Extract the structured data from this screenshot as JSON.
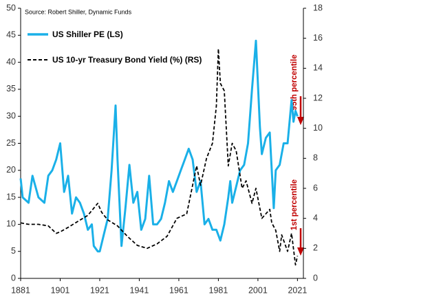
{
  "chart_data": {
    "type": "line",
    "source": "Source: Robert Shiller, Dynamic Funds",
    "xlim": [
      1881,
      2024
    ],
    "xticks": [
      1881,
      1901,
      1921,
      1941,
      1961,
      1981,
      2001,
      2021
    ],
    "ylim": [
      0,
      50
    ],
    "yticks": [
      0,
      5,
      10,
      15,
      20,
      25,
      30,
      35,
      40,
      45,
      50
    ],
    "y2lim": [
      0,
      18
    ],
    "y2ticks": [
      0,
      2,
      4,
      6,
      8,
      10,
      12,
      14,
      16,
      18
    ],
    "grid": false,
    "series": [
      {
        "name": "US Shiller PE (LS)",
        "color": "#1ab0e8",
        "dash": false,
        "x": [
          1881,
          1882,
          1885,
          1887,
          1890,
          1893,
          1895,
          1897,
          1899,
          1901,
          1903,
          1905,
          1907,
          1909,
          1911,
          1913,
          1915,
          1917,
          1918,
          1920,
          1921,
          1923,
          1925,
          1927,
          1929,
          1930,
          1932,
          1934,
          1936,
          1938,
          1940,
          1942,
          1944,
          1946,
          1948,
          1950,
          1952,
          1954,
          1956,
          1958,
          1960,
          1962,
          1964,
          1966,
          1968,
          1970,
          1972,
          1974,
          1976,
          1978,
          1980,
          1982,
          1984,
          1986,
          1987,
          1988,
          1990,
          1992,
          1994,
          1996,
          1998,
          2000,
          2002,
          2003,
          2005,
          2007,
          2009,
          2010,
          2012,
          2014,
          2016,
          2018,
          2019,
          2020,
          2021
        ],
        "values": [
          18.5,
          15,
          14,
          19,
          15,
          14,
          19,
          20,
          22,
          25,
          16,
          19,
          12,
          15,
          14,
          12,
          9,
          10,
          6,
          5,
          5,
          8,
          11,
          20,
          32,
          22,
          6,
          13,
          21,
          14,
          16,
          9,
          11,
          19,
          10,
          10,
          11,
          14,
          18,
          16,
          18,
          20,
          22,
          24,
          22,
          16,
          18,
          10,
          11,
          9,
          9,
          7,
          10,
          15,
          18,
          14,
          17,
          20,
          21,
          25,
          35,
          44,
          28,
          23,
          26,
          27,
          13,
          20,
          21,
          25,
          25,
          33,
          29,
          31,
          30
        ]
      },
      {
        "name": "US 10-yr Treasury Bond Yield (%) (RS)",
        "color": "#000000",
        "dash": true,
        "axis": "y2",
        "x": [
          1881,
          1885,
          1890,
          1895,
          1899,
          1901,
          1905,
          1910,
          1915,
          1920,
          1922,
          1925,
          1930,
          1935,
          1940,
          1945,
          1950,
          1955,
          1960,
          1965,
          1970,
          1972,
          1975,
          1978,
          1980,
          1981,
          1982,
          1984,
          1986,
          1988,
          1990,
          1993,
          1995,
          1998,
          2000,
          2003,
          2007,
          2008,
          2010,
          2012,
          2013,
          2016,
          2018,
          2020,
          2021
        ],
        "values": [
          3.7,
          3.6,
          3.6,
          3.5,
          3.0,
          3.1,
          3.4,
          3.8,
          4.2,
          5.0,
          4.4,
          3.9,
          3.5,
          2.8,
          2.2,
          2.0,
          2.3,
          2.8,
          4.0,
          4.3,
          7.5,
          6.2,
          8.0,
          9.0,
          11.5,
          15.3,
          13,
          12.5,
          7.5,
          9,
          8.5,
          6,
          6.5,
          5,
          6,
          4,
          4.6,
          3.7,
          3.2,
          1.8,
          2.9,
          1.8,
          3.0,
          0.9,
          1.5
        ]
      }
    ],
    "annotations": [
      "95th percentile",
      "1st percentile"
    ]
  }
}
